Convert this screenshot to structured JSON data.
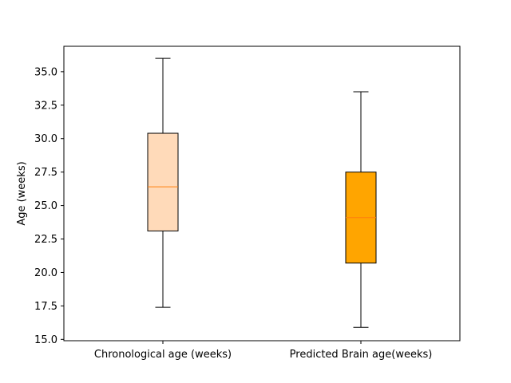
{
  "chart_data": {
    "type": "box",
    "title": "",
    "xlabel": "",
    "ylabel": "Age (weeks)",
    "ylim": [
      14.9,
      36.9
    ],
    "yticks": [
      15.0,
      17.5,
      20.0,
      22.5,
      25.0,
      27.5,
      30.0,
      32.5,
      35.0
    ],
    "ytick_labels": [
      "15.0",
      "17.5",
      "20.0",
      "22.5",
      "25.0",
      "27.5",
      "30.0",
      "32.5",
      "35.0"
    ],
    "grid": false,
    "median_color": "#ff7f0e",
    "boxes": [
      {
        "label": "Chronological age (weeks)",
        "whisker_low": 17.4,
        "q1": 23.1,
        "median": 26.4,
        "q3": 30.4,
        "whisker_high": 36.0,
        "fill": "#ffdab9"
      },
      {
        "label": "Predicted Brain age(weeks)",
        "whisker_low": 15.9,
        "q1": 20.7,
        "median": 24.1,
        "q3": 27.5,
        "whisker_high": 33.5,
        "fill": "#ffa500"
      }
    ]
  }
}
